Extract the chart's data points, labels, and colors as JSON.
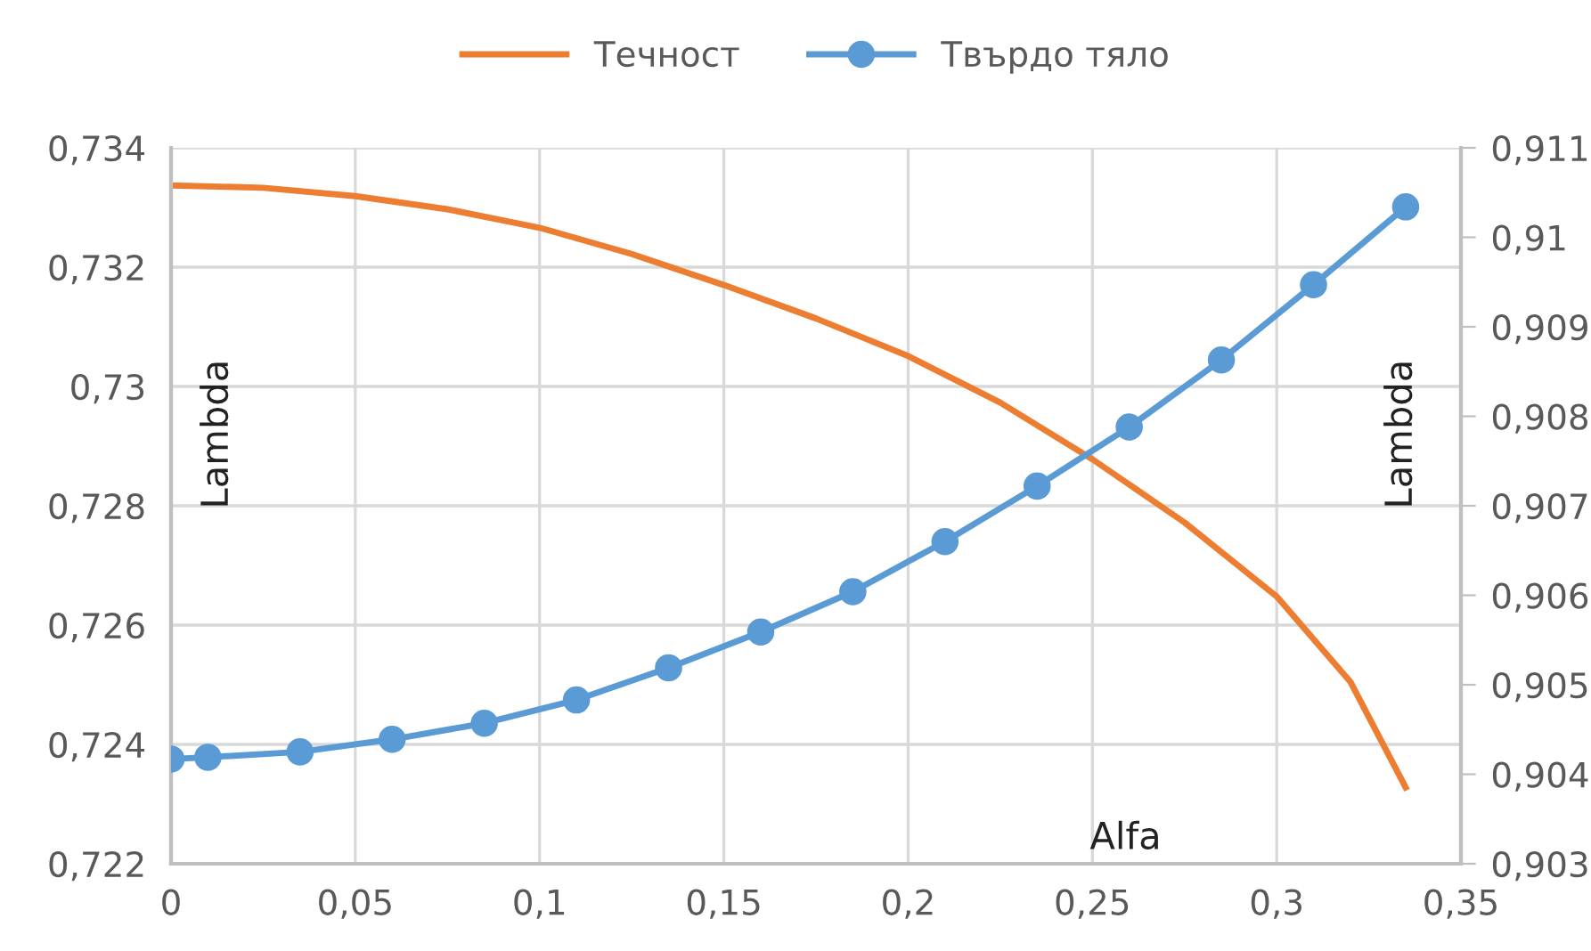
{
  "chart_data": {
    "type": "line",
    "xlabel": "Alfa",
    "ylabel": "Lambda",
    "y2label": "Lambda",
    "grid": true,
    "legend": "top",
    "xlim": [
      0,
      0.35
    ],
    "xticks": [
      {
        "value": 0,
        "label": "0"
      },
      {
        "value": 0.05,
        "label": "0,05"
      },
      {
        "value": 0.1,
        "label": "0,1"
      },
      {
        "value": 0.15,
        "label": "0,15"
      },
      {
        "value": 0.2,
        "label": "0,2"
      },
      {
        "value": 0.25,
        "label": "0,25"
      },
      {
        "value": 0.3,
        "label": "0,3"
      },
      {
        "value": 0.35,
        "label": "0,35"
      }
    ],
    "ylim": [
      0.722,
      0.734
    ],
    "yticks": [
      {
        "value": 0.722,
        "label": "0,722"
      },
      {
        "value": 0.724,
        "label": "0,724"
      },
      {
        "value": 0.726,
        "label": "0,726"
      },
      {
        "value": 0.728,
        "label": "0,728"
      },
      {
        "value": 0.73,
        "label": "0,73"
      },
      {
        "value": 0.732,
        "label": "0,732"
      },
      {
        "value": 0.734,
        "label": "0,734"
      }
    ],
    "y2lim": [
      0.903,
      0.911
    ],
    "y2ticks": [
      {
        "value": 0.903,
        "label": "0,903"
      },
      {
        "value": 0.904,
        "label": "0,904"
      },
      {
        "value": 0.905,
        "label": "0,905"
      },
      {
        "value": 0.906,
        "label": "0,906"
      },
      {
        "value": 0.907,
        "label": "0,907"
      },
      {
        "value": 0.908,
        "label": "0,908"
      },
      {
        "value": 0.909,
        "label": "0,909"
      },
      {
        "value": 0.91,
        "label": "0,91"
      },
      {
        "value": 0.911,
        "label": "0,911"
      }
    ],
    "series": [
      {
        "name": "Течност",
        "color": "#ed7d31",
        "marker": "none",
        "x": [
          0,
          0.025,
          0.05,
          0.075,
          0.1,
          0.125,
          0.15,
          0.175,
          0.2,
          0.225,
          0.25,
          0.275,
          0.3,
          0.32,
          0.335
        ],
        "values": [
          0.73337,
          0.73333,
          0.73319,
          0.73297,
          0.73266,
          0.73222,
          0.7317,
          0.73114,
          0.73051,
          0.72973,
          0.72878,
          0.72772,
          0.72648,
          0.72505,
          0.72328
        ]
      },
      {
        "name": "Твърдо тяло",
        "color": "#5b9bd5",
        "marker": "circle",
        "axis": "y2",
        "x": [
          0,
          0.01,
          0.035,
          0.06,
          0.085,
          0.11,
          0.135,
          0.16,
          0.185,
          0.21,
          0.235,
          0.26,
          0.285,
          0.31,
          0.335
        ],
        "values": [
          0.90417,
          0.90419,
          0.90425,
          0.90439,
          0.90457,
          0.90483,
          0.90519,
          0.90559,
          0.90604,
          0.9066,
          0.90722,
          0.90788,
          0.90863,
          0.90947,
          0.91034
        ]
      }
    ]
  }
}
